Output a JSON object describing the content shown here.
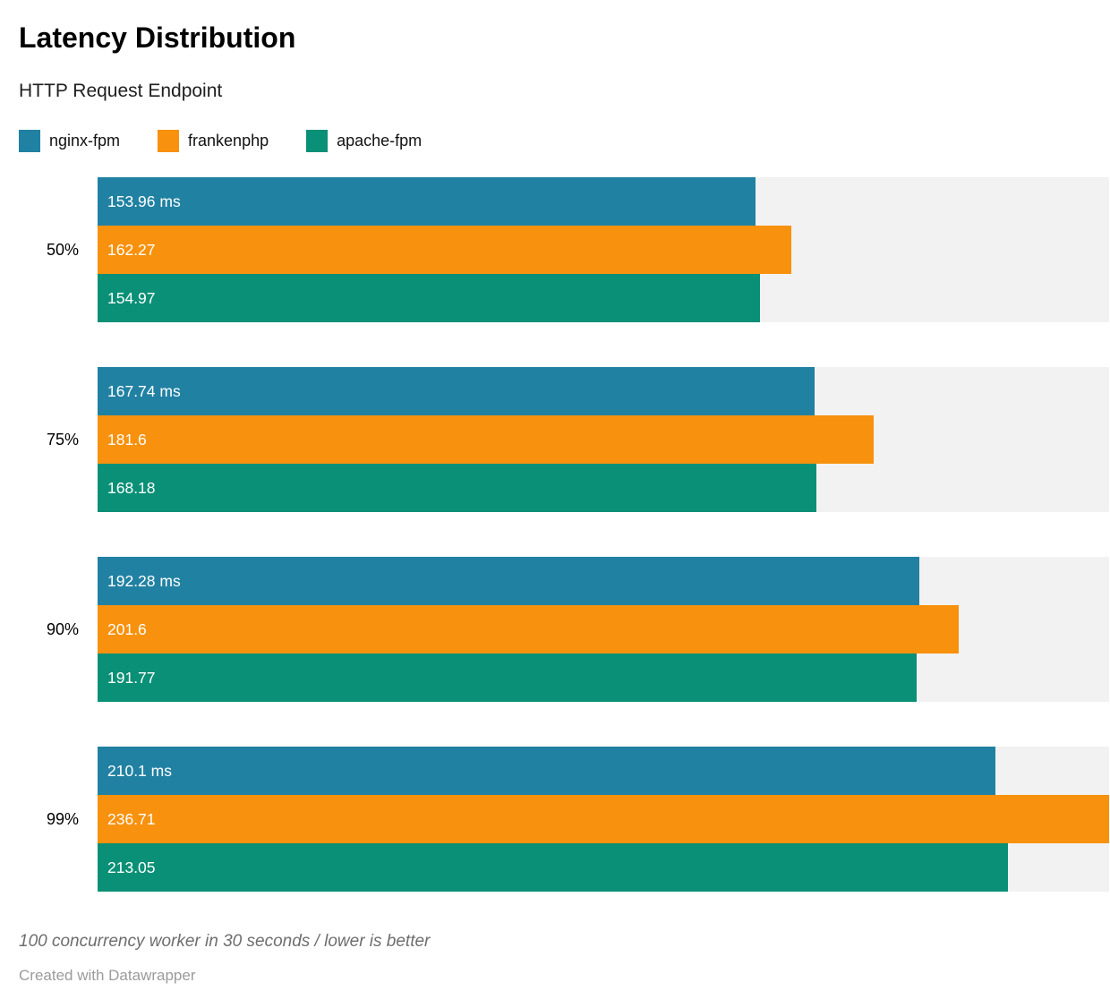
{
  "header": {
    "title": "Latency Distribution",
    "subtitle": "HTTP Request Endpoint"
  },
  "legend": [
    {
      "label": "nginx-fpm",
      "color": "#2181a2"
    },
    {
      "label": "frankenphp",
      "color": "#f8910d"
    },
    {
      "label": "apache-fpm",
      "color": "#0a9076"
    }
  ],
  "chart_data": {
    "type": "bar",
    "orientation": "horizontal",
    "title": "Latency Distribution",
    "subtitle": "HTTP Request Endpoint",
    "categories": [
      "50%",
      "75%",
      "90%",
      "99%"
    ],
    "series": [
      {
        "name": "nginx-fpm",
        "color": "#2181a2",
        "values": [
          153.96,
          167.74,
          192.28,
          210.1
        ],
        "labels": [
          "153.96 ms",
          "167.74 ms",
          "192.28 ms",
          "210.1 ms"
        ]
      },
      {
        "name": "frankenphp",
        "color": "#f8910d",
        "values": [
          162.27,
          181.6,
          201.6,
          236.71
        ],
        "labels": [
          "162.27",
          "181.6",
          "201.6",
          "236.71"
        ]
      },
      {
        "name": "apache-fpm",
        "color": "#0a9076",
        "values": [
          154.97,
          168.18,
          191.77,
          213.05
        ],
        "labels": [
          "154.97",
          "168.18",
          "191.77",
          "213.05"
        ]
      }
    ],
    "xlim": [
      0,
      236.71
    ],
    "unit": "ms",
    "grid": false,
    "legend_position": "top",
    "track_color": "#f2f2f2",
    "value_labels": "inside-left"
  },
  "footer": {
    "note": "100 concurrency worker in 30 seconds / lower is better",
    "credit": "Created with Datawrapper"
  }
}
